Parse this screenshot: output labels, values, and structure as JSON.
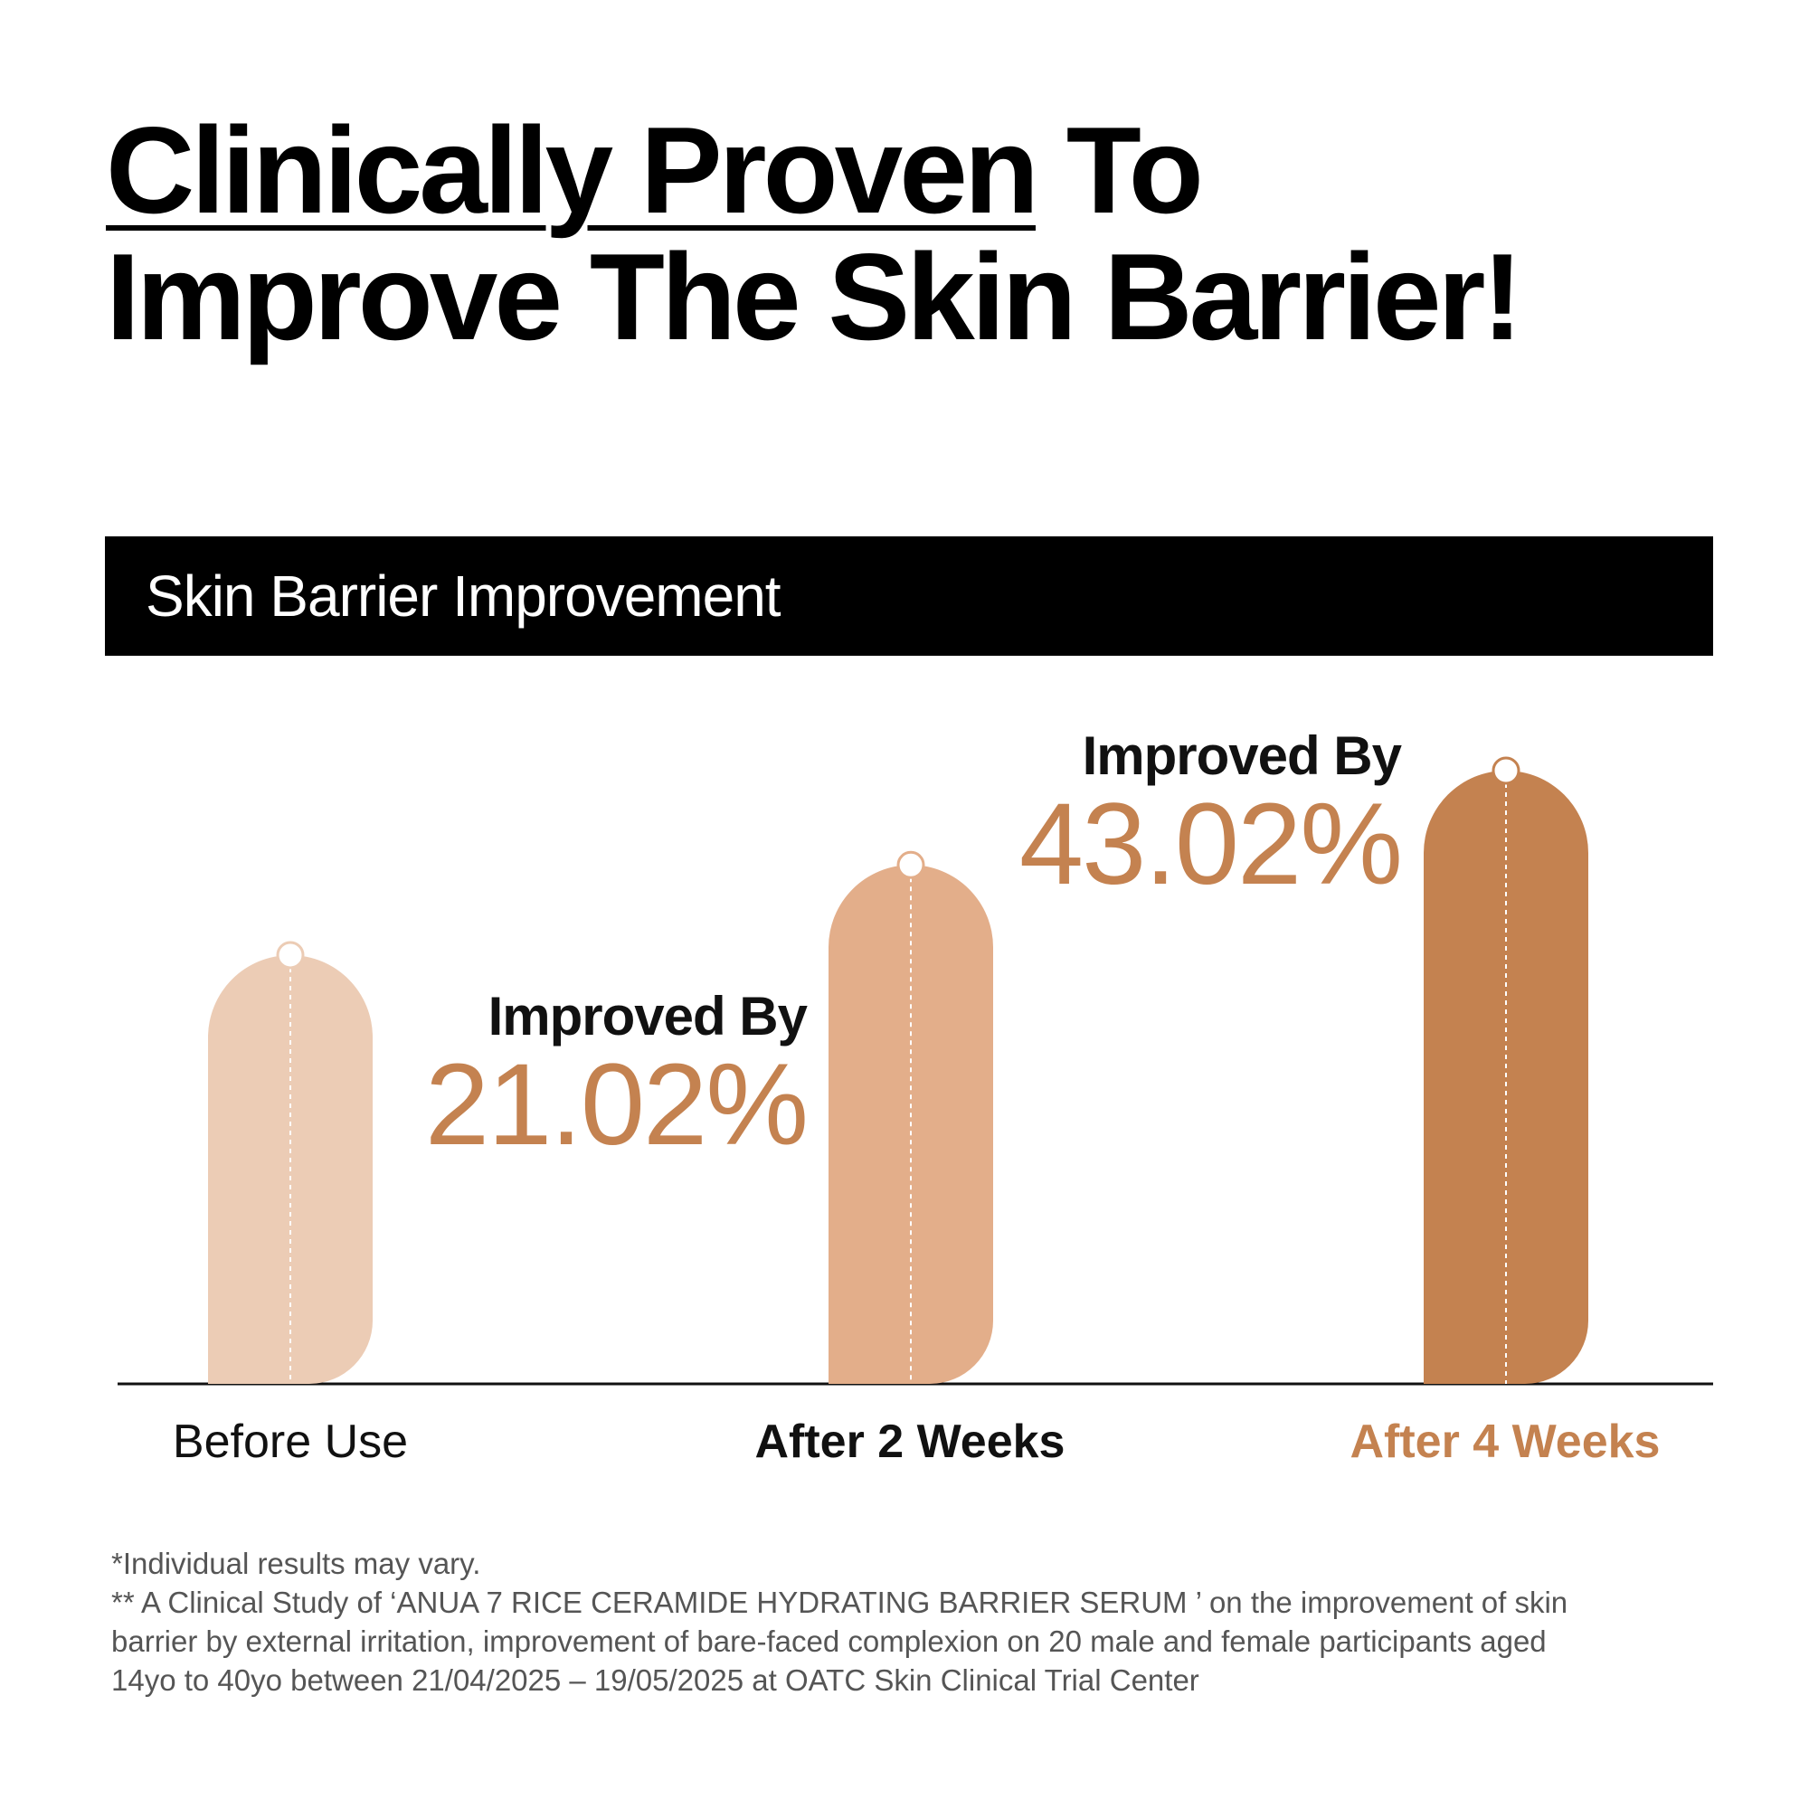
{
  "headline": {
    "underlined": "Clinically Proven",
    "rest_line1": " To",
    "line2": "Improve The Skin Barrier!"
  },
  "banner": {
    "title": "Skin Barrier Improvement"
  },
  "colors": {
    "bar_before": "#ecccb5",
    "bar_2w": "#e3ae8a",
    "bar_4w": "#c48250",
    "accent": "#c48250",
    "text": "#111111",
    "footnote": "#555555"
  },
  "chart_data": {
    "type": "bar",
    "title": "Skin Barrier Improvement",
    "categories": [
      "Before Use",
      "After 2 Weeks",
      "After 4 Weeks"
    ],
    "values": [
      100,
      121.02,
      143.02
    ],
    "improvement_percent": [
      null,
      21.02,
      43.02
    ],
    "ylim": [
      0,
      145
    ],
    "grid": false
  },
  "callouts": [
    {
      "label": "Improved By",
      "value": "21.02%"
    },
    {
      "label": "Improved By",
      "value": "43.02%"
    }
  ],
  "footnotes": [
    "*Individual results may vary.",
    "** A Clinical Study of ‘ANUA 7 RICE CERAMIDE HYDRATING BARRIER SERUM ’ on the improvement of skin",
    "barrier by external irritation, improvement of bare-faced complexion on 20 male and female participants aged",
    "14yo to 40yo between 21/04/2025 – 19/05/2025 at OATC Skin Clinical Trial Center"
  ]
}
